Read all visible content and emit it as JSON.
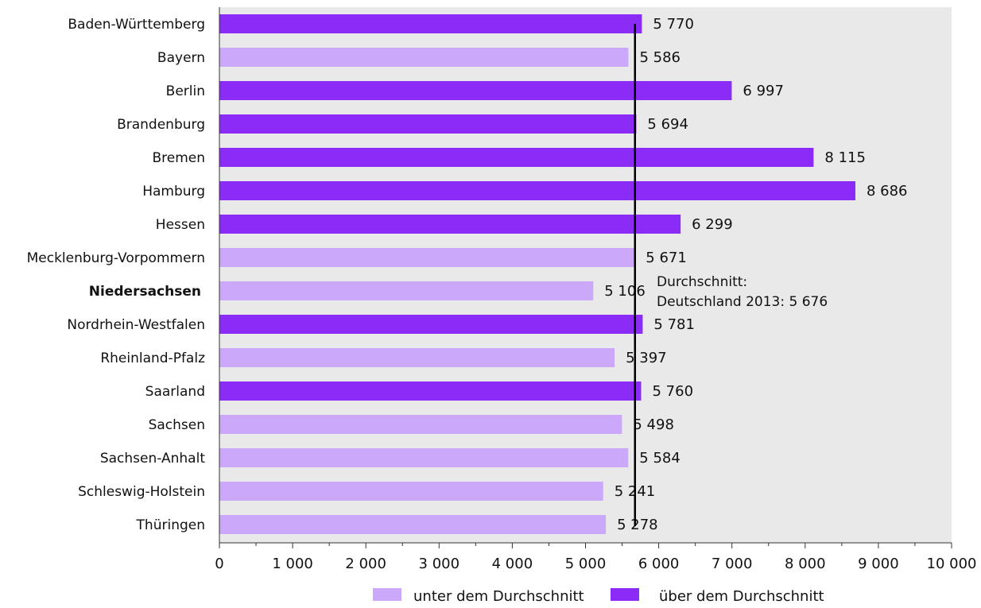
{
  "chart_data": {
    "type": "bar",
    "orientation": "horizontal",
    "categories": [
      "Baden-Württemberg",
      "Bayern",
      "Berlin",
      "Brandenburg",
      "Bremen",
      "Hamburg",
      "Hessen",
      "Mecklenburg-Vorpommern",
      "Niedersachsen",
      "Nordrhein-Westfalen",
      "Rheinland-Pfalz",
      "Saarland",
      "Sachsen",
      "Sachsen-Anhalt",
      "Schleswig-Holstein",
      "Thüringen"
    ],
    "values": [
      5770,
      5586,
      6997,
      5694,
      8115,
      8686,
      6299,
      5671,
      5106,
      5781,
      5397,
      5760,
      5498,
      5584,
      5241,
      5278
    ],
    "value_labels": [
      "5 770",
      "5 586",
      "6 997",
      "5 694",
      "8 115",
      "8 686",
      "6 299",
      "5 671",
      "5 106",
      "5 781",
      "5 397",
      "5 760",
      "5 498",
      "5 584",
      "5 241",
      "5 278"
    ],
    "highlighted_category": "Niedersachsen",
    "xlim": [
      0,
      10000
    ],
    "xticks": [
      0,
      1000,
      2000,
      3000,
      4000,
      5000,
      6000,
      7000,
      8000,
      9000,
      10000
    ],
    "xtick_labels": [
      "0",
      "1 000",
      "2 000",
      "3 000",
      "4 000",
      "5 000",
      "6 000",
      "7 000",
      "8 000",
      "9 000",
      "10 000"
    ],
    "reference_line": {
      "value": 5676,
      "label_lines": [
        "Durchschnitt:",
        "Deutschland 2013: 5 676"
      ]
    },
    "legend": [
      {
        "key": "below",
        "label": "unter dem Durchschnitt",
        "color": "#cca8fb"
      },
      {
        "key": "above",
        "label": "über dem Durchschnitt",
        "color": "#8a2bf6"
      }
    ],
    "legend_position": "bottom",
    "plot_background": "#e9e9e9",
    "grid": false
  }
}
